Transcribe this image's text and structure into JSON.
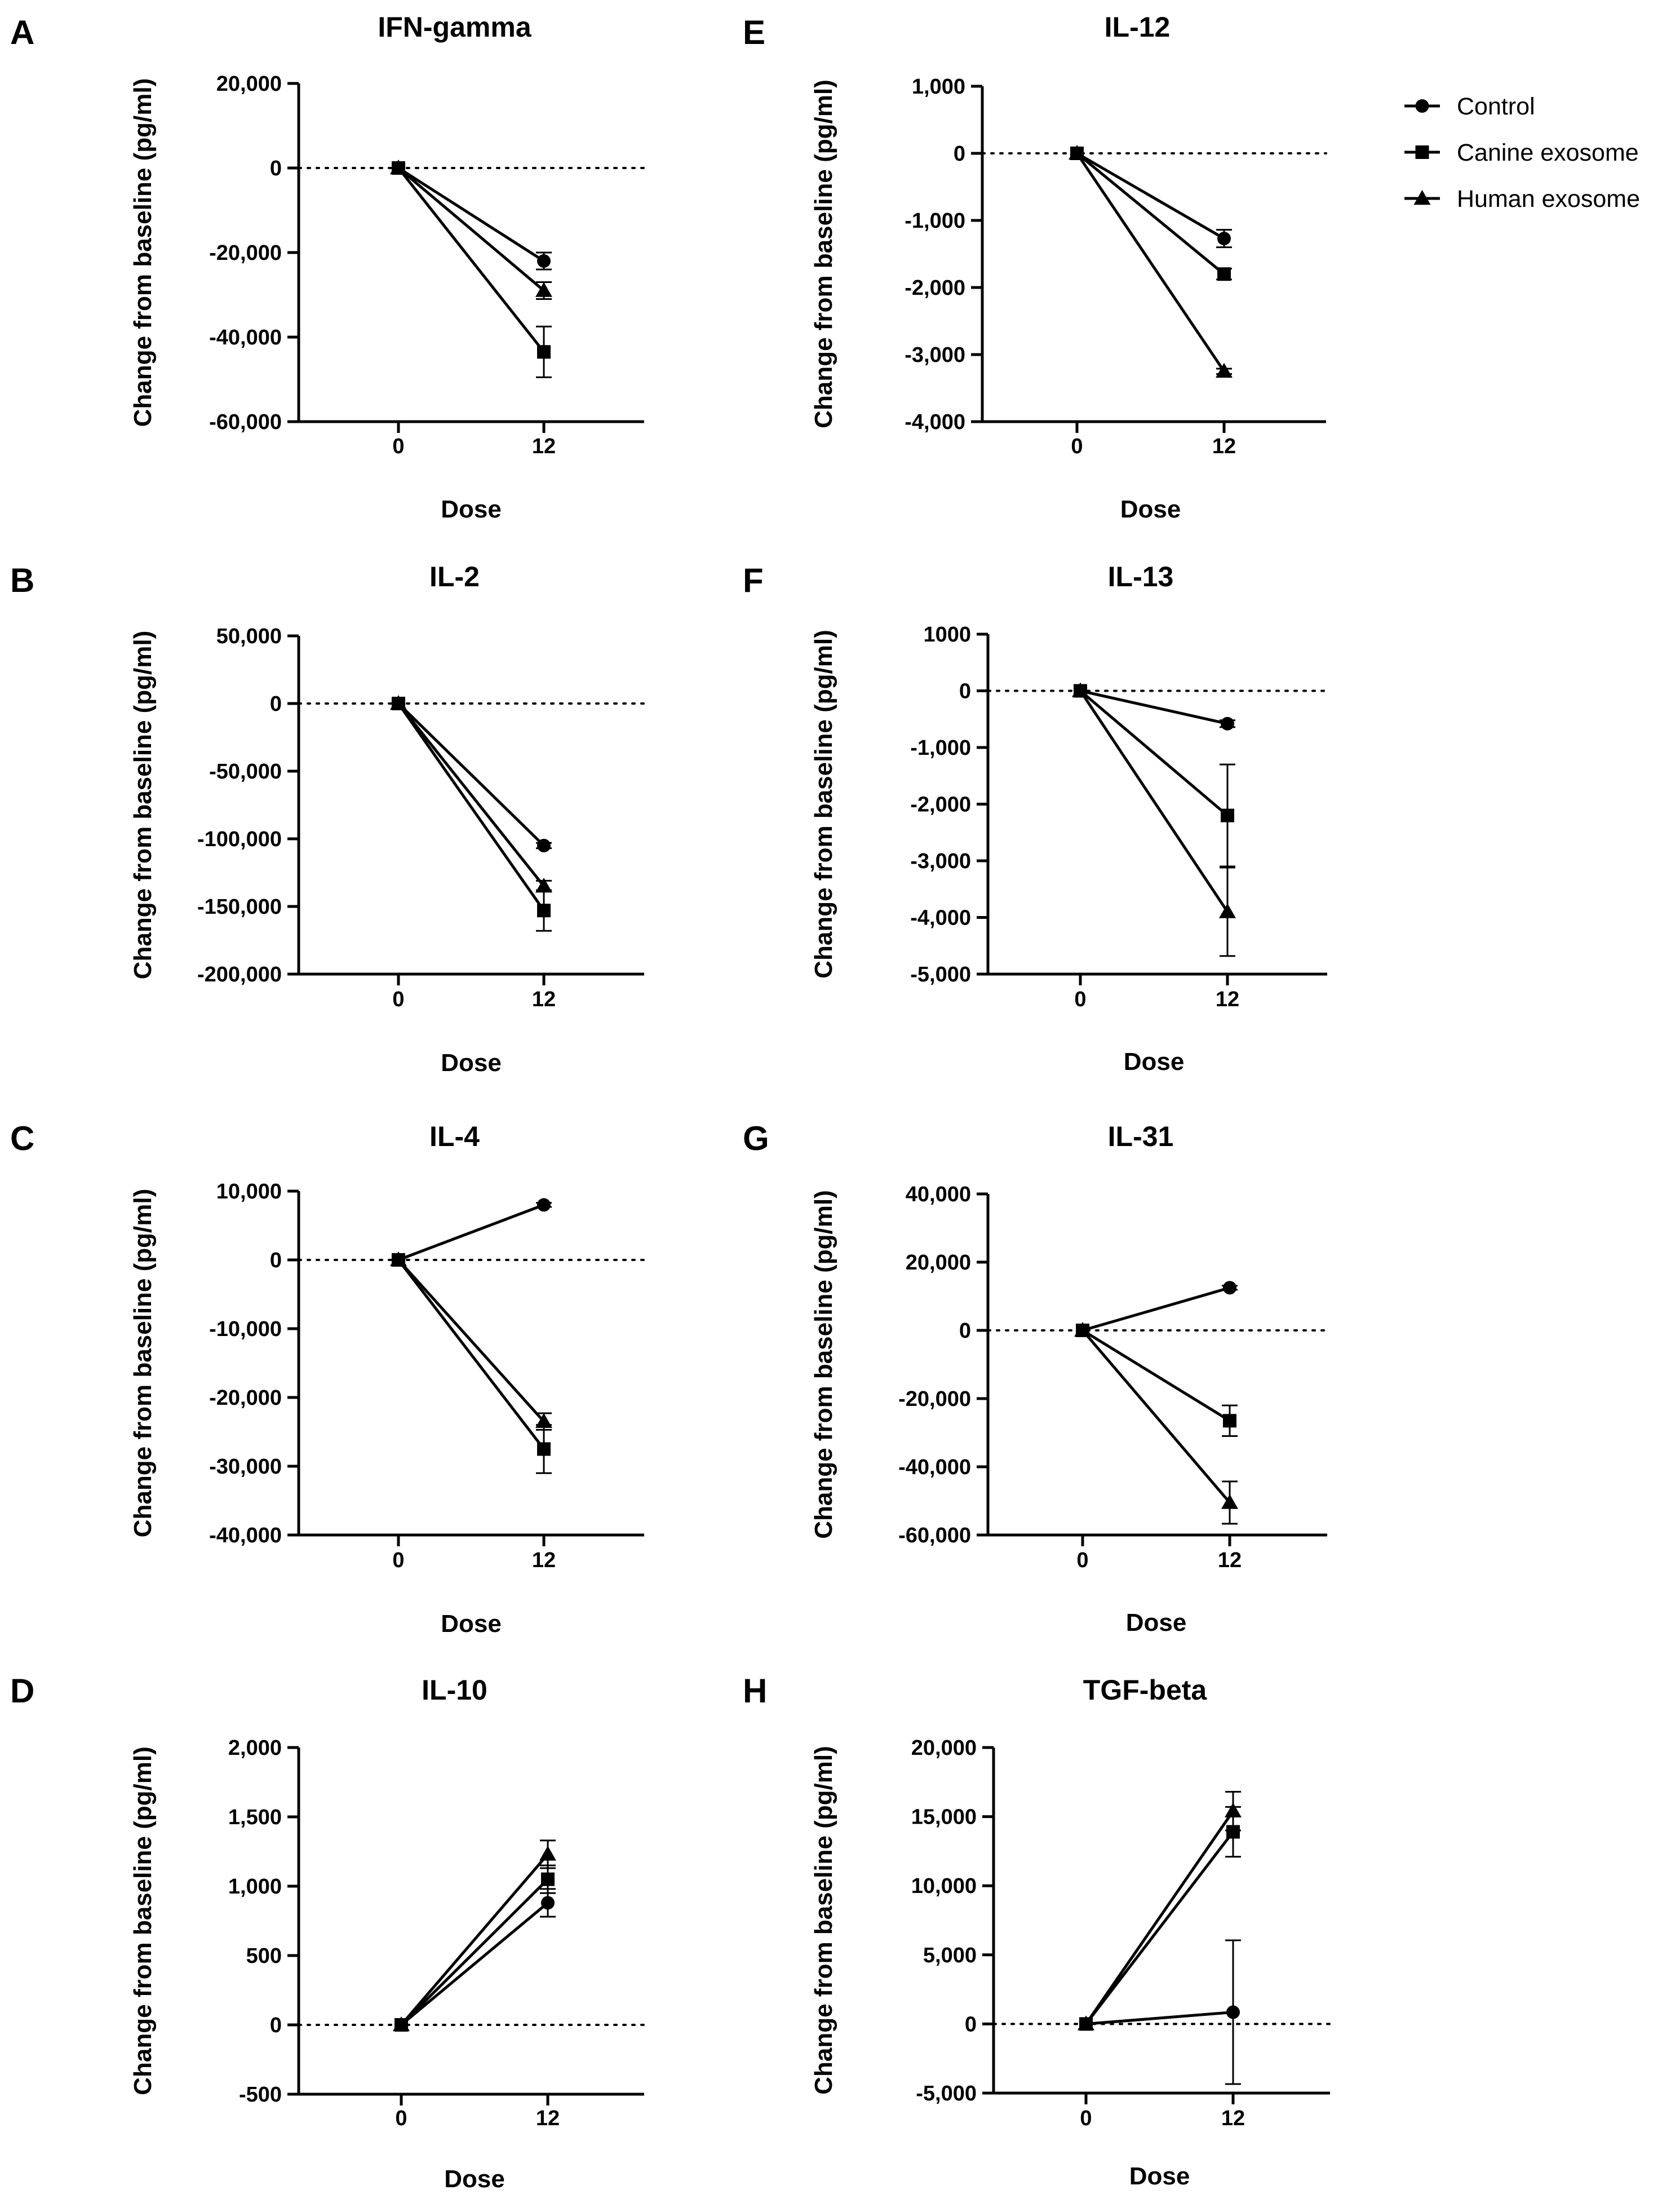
{
  "legend": {
    "entries": [
      {
        "name": "Control",
        "marker": "circle"
      },
      {
        "name": "Canine exosome",
        "marker": "square"
      },
      {
        "name": "Human exosome",
        "marker": "triangle"
      }
    ]
  },
  "chart_data": [
    {
      "letter": "A",
      "type": "line",
      "title": "IFN-gamma",
      "xlabel": "Dose",
      "ylabel": "Change from baseline (pg/ml)",
      "x": [
        0,
        12
      ],
      "ylim": [
        -60000,
        20000
      ],
      "yticks": [
        20000,
        0,
        -20000,
        -40000,
        -60000
      ],
      "ytick_labels": [
        "20,000",
        "0",
        "-20,000",
        "-40,000",
        "-60,000"
      ],
      "series": [
        {
          "name": "Control",
          "marker": "circle",
          "values": [
            0,
            -22000
          ],
          "errors": [
            0,
            2000
          ]
        },
        {
          "name": "Canine exosome",
          "marker": "square",
          "values": [
            0,
            -43500
          ],
          "errors": [
            0,
            6000
          ]
        },
        {
          "name": "Human exosome",
          "marker": "triangle",
          "values": [
            0,
            -29000
          ],
          "errors": [
            0,
            2000
          ]
        }
      ]
    },
    {
      "letter": "B",
      "type": "line",
      "title": "IL-2",
      "xlabel": "Dose",
      "ylabel": "Change from baseline (pg/ml)",
      "x": [
        0,
        12
      ],
      "ylim": [
        -200000,
        50000
      ],
      "yticks": [
        50000,
        0,
        -50000,
        -100000,
        -150000,
        -200000
      ],
      "ytick_labels": [
        "50,000",
        "0",
        "-50,000",
        "-100,000",
        "-150,000",
        "-200,000"
      ],
      "series": [
        {
          "name": "Control",
          "marker": "circle",
          "values": [
            0,
            -105000
          ],
          "errors": [
            0,
            2000
          ]
        },
        {
          "name": "Canine exosome",
          "marker": "square",
          "values": [
            0,
            -153000
          ],
          "errors": [
            0,
            15000
          ]
        },
        {
          "name": "Human exosome",
          "marker": "triangle",
          "values": [
            0,
            -135000
          ],
          "errors": [
            0,
            4000
          ]
        }
      ]
    },
    {
      "letter": "C",
      "type": "line",
      "title": "IL-4",
      "xlabel": "Dose",
      "ylabel": "Change from baseline (pg/ml)",
      "x": [
        0,
        12
      ],
      "ylim": [
        -40000,
        10000
      ],
      "yticks": [
        10000,
        0,
        -10000,
        -20000,
        -30000,
        -40000
      ],
      "ytick_labels": [
        "10,000",
        "0",
        "-10,000",
        "-20,000",
        "-30,000",
        "-40,000"
      ],
      "series": [
        {
          "name": "Control",
          "marker": "circle",
          "values": [
            0,
            8000
          ],
          "errors": [
            0,
            300
          ]
        },
        {
          "name": "Canine exosome",
          "marker": "square",
          "values": [
            0,
            -27500
          ],
          "errors": [
            0,
            3500
          ]
        },
        {
          "name": "Human exosome",
          "marker": "triangle",
          "values": [
            0,
            -23500
          ],
          "errors": [
            0,
            1200
          ]
        }
      ]
    },
    {
      "letter": "D",
      "type": "line",
      "title": "IL-10",
      "xlabel": "Dose",
      "ylabel": "Change from baseline (pg/ml)",
      "x": [
        0,
        12
      ],
      "ylim": [
        -500,
        2000
      ],
      "yticks": [
        2000,
        1500,
        1000,
        500,
        0,
        -500
      ],
      "ytick_labels": [
        "2,000",
        "1,500",
        "1,000",
        "500",
        "0",
        "-500"
      ],
      "series": [
        {
          "name": "Control",
          "marker": "circle",
          "values": [
            0,
            880
          ],
          "errors": [
            0,
            100
          ]
        },
        {
          "name": "Canine exosome",
          "marker": "square",
          "values": [
            0,
            1050
          ],
          "errors": [
            0,
            100
          ]
        },
        {
          "name": "Human exosome",
          "marker": "triangle",
          "values": [
            0,
            1230
          ],
          "errors": [
            0,
            100
          ]
        }
      ]
    },
    {
      "letter": "E",
      "type": "line",
      "title": "IL-12",
      "xlabel": "Dose",
      "ylabel": "Change from baseline (pg/ml)",
      "x": [
        0,
        12
      ],
      "ylim": [
        -4000,
        1000
      ],
      "yticks": [
        1000,
        0,
        -1000,
        -2000,
        -3000,
        -4000
      ],
      "ytick_labels": [
        "1,000",
        "0",
        "-1,000",
        "-2,000",
        "-3,000",
        "-4,000"
      ],
      "series": [
        {
          "name": "Control",
          "marker": "circle",
          "values": [
            0,
            -1270
          ],
          "errors": [
            0,
            130
          ]
        },
        {
          "name": "Canine exosome",
          "marker": "square",
          "values": [
            0,
            -1800
          ],
          "errors": [
            0,
            80
          ]
        },
        {
          "name": "Human exosome",
          "marker": "triangle",
          "values": [
            0,
            -3250
          ],
          "errors": [
            0,
            40
          ]
        }
      ]
    },
    {
      "letter": "F",
      "type": "line",
      "title": "IL-13",
      "xlabel": "Dose",
      "ylabel": "Change from baseline (pg/ml)",
      "x": [
        0,
        12
      ],
      "ylim": [
        -5000,
        1000
      ],
      "yticks": [
        1000,
        0,
        -1000,
        -2000,
        -3000,
        -4000,
        -5000
      ],
      "ytick_labels": [
        "1000",
        "0",
        "-1,000",
        "-2,000",
        "-3,000",
        "-4,000",
        "-5,000"
      ],
      "series": [
        {
          "name": "Control",
          "marker": "circle",
          "values": [
            0,
            -580
          ],
          "errors": [
            0,
            60
          ]
        },
        {
          "name": "Canine exosome",
          "marker": "square",
          "values": [
            0,
            -2200
          ],
          "errors": [
            0,
            900
          ]
        },
        {
          "name": "Human exosome",
          "marker": "triangle",
          "values": [
            0,
            -3900
          ],
          "errors": [
            0,
            780
          ]
        }
      ]
    },
    {
      "letter": "G",
      "type": "line",
      "title": "IL-31",
      "xlabel": "Dose",
      "ylabel": "Change from baseline (pg/ml)",
      "x": [
        0,
        12
      ],
      "ylim": [
        -60000,
        40000
      ],
      "yticks": [
        40000,
        20000,
        0,
        -20000,
        -40000,
        -60000
      ],
      "ytick_labels": [
        "40,000",
        "20,000",
        "0",
        "-20,000",
        "-40,000",
        "-60,000"
      ],
      "series": [
        {
          "name": "Control",
          "marker": "circle",
          "values": [
            0,
            12500
          ],
          "errors": [
            0,
            600
          ]
        },
        {
          "name": "Canine exosome",
          "marker": "square",
          "values": [
            0,
            -26500
          ],
          "errors": [
            0,
            4500
          ]
        },
        {
          "name": "Human exosome",
          "marker": "triangle",
          "values": [
            0,
            -50500
          ],
          "errors": [
            0,
            6200
          ]
        }
      ]
    },
    {
      "letter": "H",
      "type": "line",
      "title": "TGF-beta",
      "xlabel": "Dose",
      "ylabel": "Change from baseline (pg/ml)",
      "x": [
        0,
        12
      ],
      "ylim": [
        -5000,
        20000
      ],
      "yticks": [
        20000,
        15000,
        10000,
        5000,
        0,
        -5000
      ],
      "ytick_labels": [
        "20,000",
        "15,000",
        "10,000",
        "5,000",
        "0",
        "-5,000"
      ],
      "series": [
        {
          "name": "Control",
          "marker": "circle",
          "values": [
            0,
            850
          ],
          "errors": [
            0,
            5200
          ]
        },
        {
          "name": "Canine exosome",
          "marker": "square",
          "values": [
            0,
            13900
          ],
          "errors": [
            0,
            1800
          ]
        },
        {
          "name": "Human exosome",
          "marker": "triangle",
          "values": [
            0,
            15400
          ],
          "errors": [
            0,
            1400
          ]
        }
      ]
    }
  ]
}
